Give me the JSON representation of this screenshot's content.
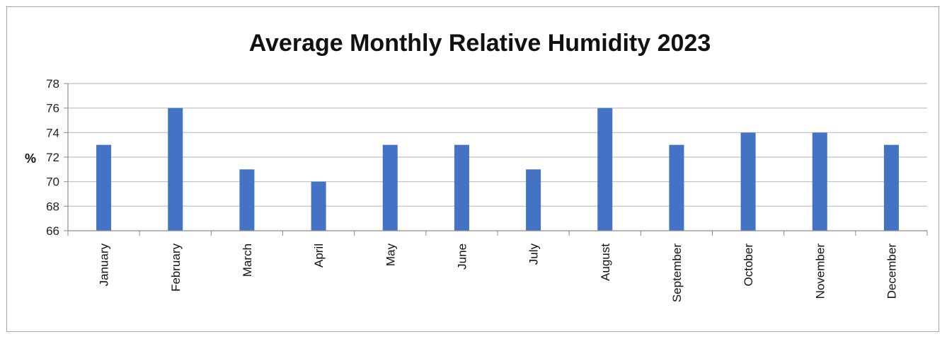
{
  "chart_data": {
    "type": "bar",
    "title": "Average Monthly Relative Humidity 2023",
    "xlabel": "",
    "ylabel": "%",
    "categories": [
      "January",
      "February",
      "March",
      "April",
      "May",
      "June",
      "July",
      "August",
      "September",
      "October",
      "November",
      "December"
    ],
    "values": [
      73,
      76,
      71,
      70,
      73,
      73,
      71,
      76,
      73,
      74,
      74,
      73
    ],
    "ylim": [
      66,
      78
    ],
    "yticks": [
      66,
      68,
      70,
      72,
      74,
      76,
      78
    ],
    "grid": true,
    "legend": "none",
    "colors": {
      "bar": "#4472c4",
      "grid": "#bfbfbf",
      "axis": "#8c8c8c"
    }
  }
}
